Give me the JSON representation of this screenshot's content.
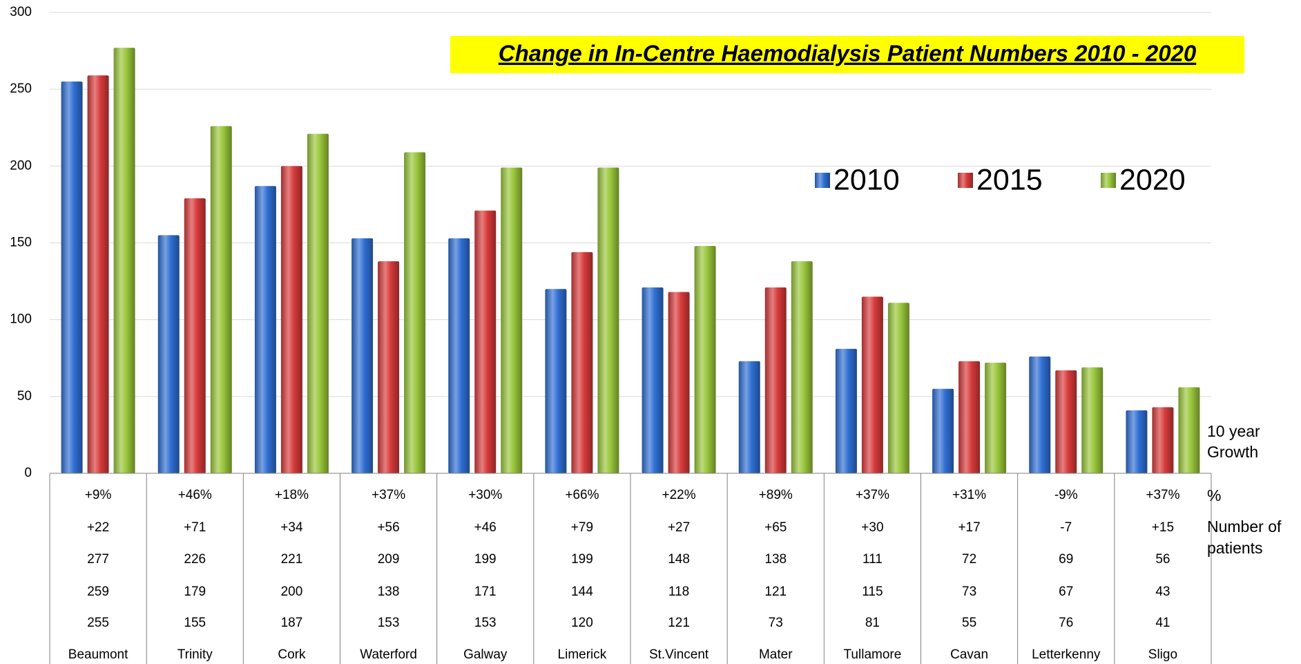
{
  "chart_data": {
    "type": "bar",
    "title": "Change in In-Centre Haemodialysis Patient Numbers 2010 - 2020",
    "categories": [
      "Beaumont",
      "Trinity",
      "Cork",
      "Waterford",
      "Galway",
      "Limerick",
      "St.Vincent",
      "Mater",
      "Tullamore",
      "Cavan",
      "Letterkenny",
      "Sligo"
    ],
    "series": [
      {
        "name": "2010",
        "color": "#2f6fd4",
        "values": [
          255,
          155,
          187,
          153,
          153,
          120,
          121,
          73,
          81,
          55,
          76,
          41
        ]
      },
      {
        "name": "2015",
        "color": "#d83a3a",
        "values": [
          259,
          179,
          200,
          138,
          171,
          144,
          118,
          121,
          115,
          73,
          67,
          43
        ]
      },
      {
        "name": "2020",
        "color": "#99c63a",
        "values": [
          277,
          226,
          221,
          209,
          199,
          199,
          148,
          138,
          111,
          72,
          69,
          56
        ]
      }
    ],
    "ylim": [
      0,
      300
    ],
    "yticks": [
      0,
      50,
      100,
      150,
      200,
      250,
      300
    ],
    "grid": true,
    "legend": "top-right",
    "growth_heading": [
      "10 year",
      "Growth"
    ],
    "growth_percent": {
      "label": "%",
      "cells": [
        "+9%",
        "+46%",
        "+18%",
        "+37%",
        "+30%",
        "+66%",
        "+22%",
        "+89%",
        "+37%",
        "+31%",
        "-9%",
        "+37%"
      ]
    },
    "growth_patients": {
      "label": [
        "Number of",
        "patients"
      ],
      "cells": [
        "+22",
        "+71",
        "+34",
        "+56",
        "+46",
        "+79",
        "+27",
        "+65",
        "+30",
        "+17",
        "-7",
        "+15"
      ]
    }
  }
}
